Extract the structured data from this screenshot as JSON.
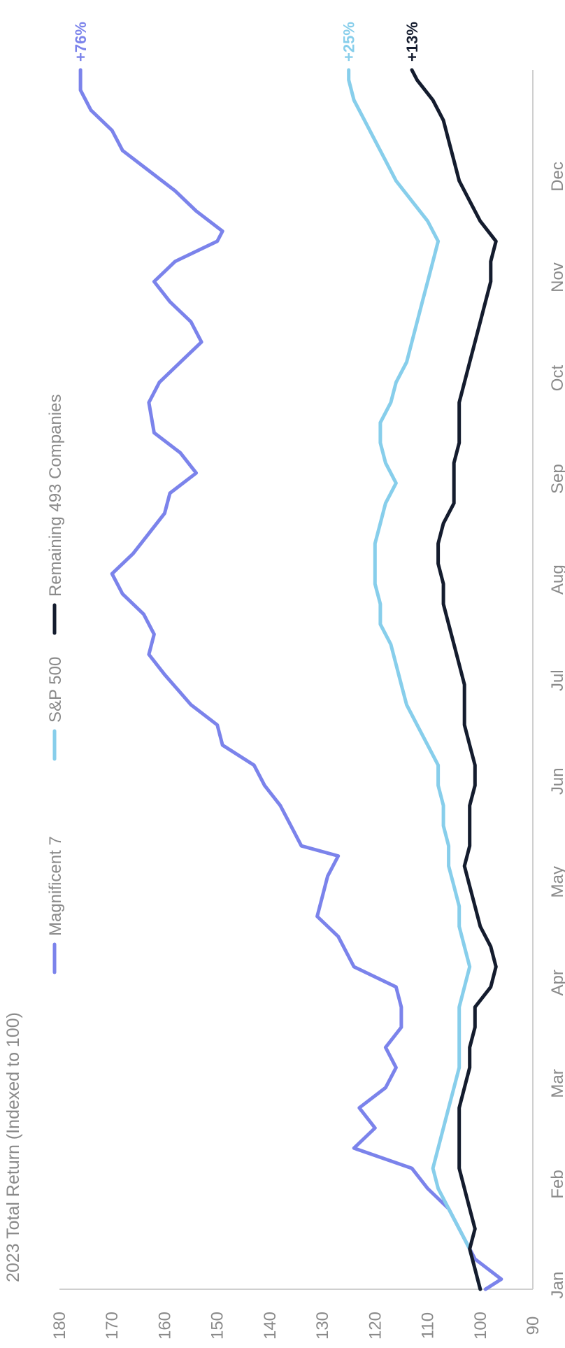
{
  "chart_data": {
    "type": "line",
    "title": "",
    "ylabel": "2023 Total Return (Indexed to 100)",
    "xlabel": "",
    "ylim": [
      90,
      180
    ],
    "yticks": [
      90,
      100,
      110,
      120,
      130,
      140,
      150,
      160,
      170,
      180
    ],
    "x_labels": [
      "Jan",
      "Feb",
      "Mar",
      "Apr",
      "May",
      "Jun",
      "Jul",
      "Aug",
      "Sep",
      "Oct",
      "Nov",
      "Dec"
    ],
    "grid": false,
    "legend_position": "top",
    "series": [
      {
        "name": "Magnificent 7",
        "color": "#7b83eb",
        "end_label": "+76%",
        "points": [
          [
            0.0,
            99
          ],
          [
            0.1,
            96
          ],
          [
            0.3,
            101
          ],
          [
            0.5,
            103
          ],
          [
            0.8,
            106
          ],
          [
            1.0,
            110
          ],
          [
            1.2,
            113
          ],
          [
            1.4,
            124
          ],
          [
            1.6,
            120
          ],
          [
            1.8,
            123
          ],
          [
            2.0,
            118
          ],
          [
            2.2,
            116
          ],
          [
            2.4,
            118
          ],
          [
            2.6,
            115
          ],
          [
            2.8,
            115
          ],
          [
            3.0,
            116
          ],
          [
            3.2,
            124
          ],
          [
            3.5,
            127
          ],
          [
            3.7,
            131
          ],
          [
            3.9,
            130
          ],
          [
            4.1,
            129
          ],
          [
            4.3,
            127
          ],
          [
            4.4,
            134
          ],
          [
            4.6,
            136
          ],
          [
            4.8,
            138
          ],
          [
            5.0,
            141
          ],
          [
            5.2,
            143
          ],
          [
            5.4,
            149
          ],
          [
            5.6,
            150
          ],
          [
            5.8,
            155
          ],
          [
            6.1,
            160
          ],
          [
            6.3,
            163
          ],
          [
            6.5,
            162
          ],
          [
            6.7,
            164
          ],
          [
            6.9,
            168
          ],
          [
            7.1,
            170
          ],
          [
            7.3,
            166
          ],
          [
            7.5,
            163
          ],
          [
            7.7,
            160
          ],
          [
            7.9,
            159
          ],
          [
            8.1,
            154
          ],
          [
            8.3,
            157
          ],
          [
            8.5,
            162
          ],
          [
            8.8,
            163
          ],
          [
            9.0,
            161
          ],
          [
            9.2,
            157
          ],
          [
            9.4,
            153
          ],
          [
            9.6,
            155
          ],
          [
            9.8,
            159
          ],
          [
            10.0,
            162
          ],
          [
            10.2,
            158
          ],
          [
            10.4,
            150
          ],
          [
            10.5,
            149
          ],
          [
            10.7,
            154
          ],
          [
            10.9,
            158
          ],
          [
            11.1,
            163
          ],
          [
            11.3,
            168
          ],
          [
            11.5,
            170
          ],
          [
            11.7,
            174
          ],
          [
            11.9,
            176
          ],
          [
            12.1,
            176
          ]
        ]
      },
      {
        "name": "S&P 500",
        "color": "#87ceeb",
        "end_label": "+25%",
        "points": [
          [
            0.0,
            100
          ],
          [
            0.2,
            101
          ],
          [
            0.4,
            102
          ],
          [
            0.6,
            104
          ],
          [
            0.8,
            106
          ],
          [
            1.0,
            108
          ],
          [
            1.2,
            109
          ],
          [
            1.4,
            108
          ],
          [
            1.6,
            107
          ],
          [
            1.8,
            106
          ],
          [
            2.0,
            105
          ],
          [
            2.2,
            104
          ],
          [
            2.4,
            104
          ],
          [
            2.6,
            104
          ],
          [
            2.8,
            104
          ],
          [
            3.0,
            103
          ],
          [
            3.2,
            102
          ],
          [
            3.4,
            103
          ],
          [
            3.6,
            104
          ],
          [
            3.8,
            104
          ],
          [
            4.0,
            105
          ],
          [
            4.2,
            106
          ],
          [
            4.4,
            106
          ],
          [
            4.6,
            107
          ],
          [
            4.8,
            107
          ],
          [
            5.0,
            108
          ],
          [
            5.2,
            108
          ],
          [
            5.4,
            110
          ],
          [
            5.6,
            112
          ],
          [
            5.8,
            114
          ],
          [
            6.0,
            115
          ],
          [
            6.2,
            116
          ],
          [
            6.4,
            117
          ],
          [
            6.6,
            119
          ],
          [
            6.8,
            119
          ],
          [
            7.0,
            120
          ],
          [
            7.2,
            120
          ],
          [
            7.4,
            120
          ],
          [
            7.6,
            119
          ],
          [
            7.8,
            118
          ],
          [
            8.0,
            116
          ],
          [
            8.2,
            118
          ],
          [
            8.4,
            119
          ],
          [
            8.6,
            119
          ],
          [
            8.8,
            117
          ],
          [
            9.0,
            116
          ],
          [
            9.2,
            114
          ],
          [
            9.4,
            113
          ],
          [
            9.6,
            112
          ],
          [
            9.8,
            111
          ],
          [
            10.0,
            110
          ],
          [
            10.2,
            109
          ],
          [
            10.4,
            108
          ],
          [
            10.6,
            110
          ],
          [
            10.8,
            113
          ],
          [
            11.0,
            116
          ],
          [
            11.2,
            118
          ],
          [
            11.4,
            120
          ],
          [
            11.6,
            122
          ],
          [
            11.8,
            124
          ],
          [
            12.0,
            125
          ],
          [
            12.1,
            125
          ]
        ]
      },
      {
        "name": "Remaining 493 Companies",
        "color": "#141c2e",
        "end_label": "+13%",
        "points": [
          [
            0.0,
            100
          ],
          [
            0.2,
            101
          ],
          [
            0.4,
            102
          ],
          [
            0.6,
            101
          ],
          [
            0.8,
            102
          ],
          [
            1.0,
            103
          ],
          [
            1.2,
            104
          ],
          [
            1.4,
            104
          ],
          [
            1.6,
            104
          ],
          [
            1.8,
            104
          ],
          [
            2.0,
            103
          ],
          [
            2.2,
            102
          ],
          [
            2.4,
            102
          ],
          [
            2.6,
            101
          ],
          [
            2.8,
            101
          ],
          [
            3.0,
            98
          ],
          [
            3.2,
            97
          ],
          [
            3.4,
            98
          ],
          [
            3.6,
            100
          ],
          [
            3.8,
            101
          ],
          [
            4.0,
            102
          ],
          [
            4.2,
            103
          ],
          [
            4.4,
            102
          ],
          [
            4.6,
            102
          ],
          [
            4.8,
            102
          ],
          [
            5.0,
            101
          ],
          [
            5.2,
            101
          ],
          [
            5.4,
            102
          ],
          [
            5.6,
            103
          ],
          [
            5.8,
            103
          ],
          [
            6.0,
            103
          ],
          [
            6.2,
            104
          ],
          [
            6.4,
            105
          ],
          [
            6.6,
            106
          ],
          [
            6.8,
            107
          ],
          [
            7.0,
            107
          ],
          [
            7.2,
            108
          ],
          [
            7.4,
            108
          ],
          [
            7.6,
            107
          ],
          [
            7.8,
            105
          ],
          [
            8.0,
            105
          ],
          [
            8.2,
            105
          ],
          [
            8.4,
            104
          ],
          [
            8.6,
            104
          ],
          [
            8.8,
            104
          ],
          [
            9.0,
            103
          ],
          [
            9.2,
            102
          ],
          [
            9.4,
            101
          ],
          [
            9.6,
            100
          ],
          [
            9.8,
            99
          ],
          [
            10.0,
            98
          ],
          [
            10.2,
            98
          ],
          [
            10.4,
            97
          ],
          [
            10.6,
            100
          ],
          [
            10.8,
            102
          ],
          [
            11.0,
            104
          ],
          [
            11.2,
            105
          ],
          [
            11.4,
            106
          ],
          [
            11.6,
            107
          ],
          [
            11.8,
            109
          ],
          [
            12.0,
            112
          ],
          [
            12.1,
            113
          ]
        ]
      }
    ]
  }
}
